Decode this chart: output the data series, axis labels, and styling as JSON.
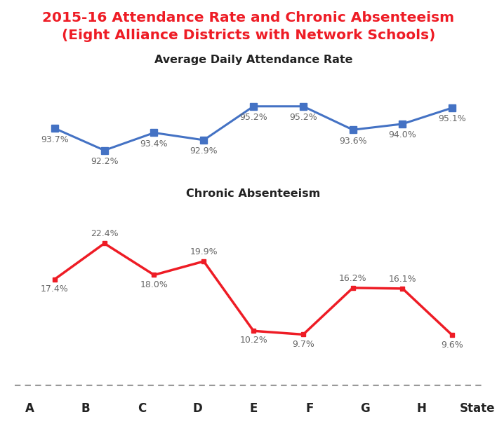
{
  "title_line1": "2015-16 Attendance Rate and Chronic Absenteeism",
  "title_line2": "(Eight Alliance Districts with Network Schools)",
  "title_color": "#ee1c25",
  "categories": [
    "A",
    "B",
    "C",
    "D",
    "E",
    "F",
    "G",
    "H",
    "State"
  ],
  "attendance_label": "Average Daily Attendance Rate",
  "attendance_values": [
    93.7,
    92.2,
    93.4,
    92.9,
    95.2,
    95.2,
    93.6,
    94.0,
    95.1
  ],
  "attendance_labels": [
    "93.7%",
    "92.2%",
    "93.4%",
    "92.9%",
    "95.2%",
    "95.2%",
    "93.6%",
    "94.0%",
    "95.1%"
  ],
  "attendance_color": "#4472c4",
  "absenteeism_label": "Chronic Absenteeism",
  "absenteeism_values": [
    17.4,
    22.4,
    18.0,
    19.9,
    10.2,
    9.7,
    16.2,
    16.1,
    9.6
  ],
  "absenteeism_labels": [
    "17.4%",
    "22.4%",
    "18.0%",
    "19.9%",
    "10.2%",
    "9.7%",
    "16.2%",
    "16.1%",
    "9.6%"
  ],
  "absenteeism_color": "#ee1c25",
  "label_color": "#666666",
  "axis_label_color": "#222222",
  "dotted_line_color": "#999999",
  "background_color": "#ffffff",
  "absent_label_above": [
    false,
    true,
    false,
    true,
    false,
    false,
    true,
    true,
    false
  ]
}
